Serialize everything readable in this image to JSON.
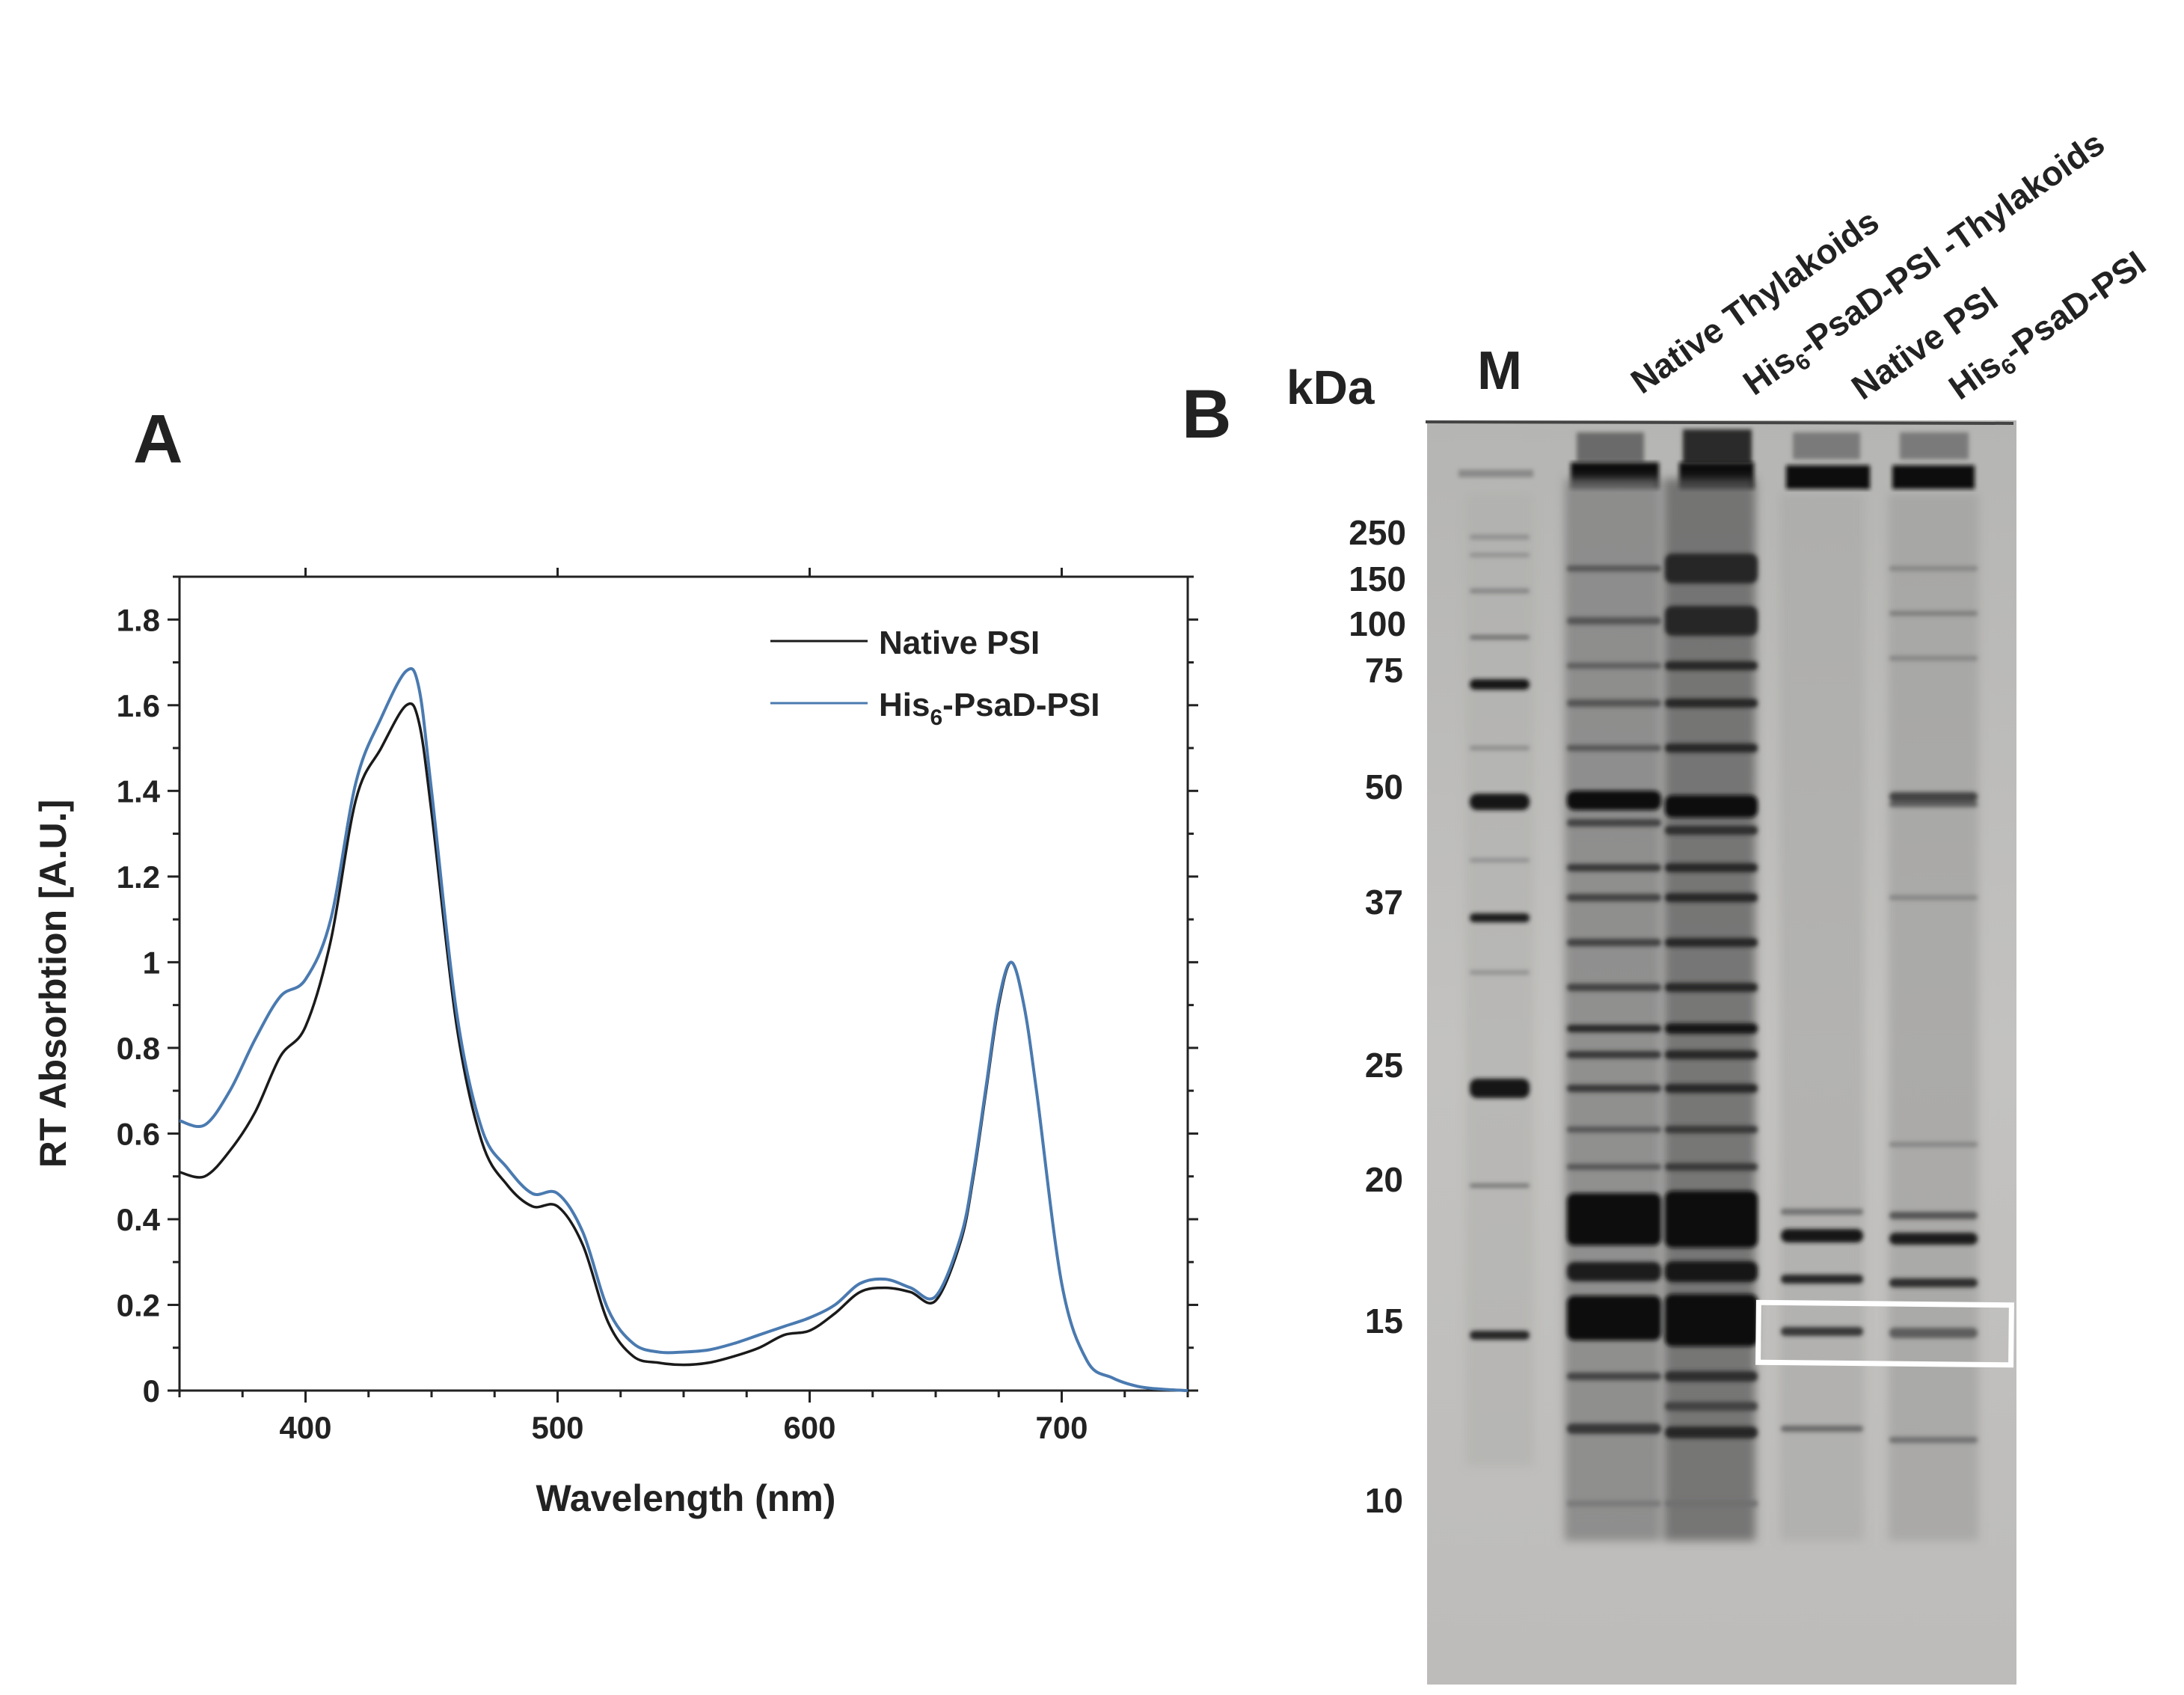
{
  "panel_a": {
    "label": "A",
    "chart_data": {
      "type": "line",
      "xlabel": "Wavelength (nm)",
      "ylabel": "RT Absorbtion [A.U.]",
      "xlim": [
        350,
        750
      ],
      "ylim": [
        0,
        1.9
      ],
      "xticks": [
        "400",
        "500",
        "600",
        "700"
      ],
      "yticks": [
        "0",
        "0.2",
        "0.4",
        "0.6",
        "0.8",
        "1",
        "1.2",
        "1.4",
        "1.6",
        "1.8"
      ],
      "legend_position": "top-right",
      "series": [
        {
          "name": "Native PSI",
          "color": "#1a1a1a",
          "x": [
            350,
            360,
            370,
            380,
            390,
            400,
            410,
            420,
            430,
            440,
            445,
            450,
            460,
            470,
            480,
            490,
            500,
            510,
            520,
            530,
            540,
            550,
            560,
            570,
            580,
            590,
            600,
            610,
            620,
            630,
            640,
            650,
            660,
            665,
            670,
            675,
            680,
            685,
            690,
            700,
            710,
            720,
            730,
            740,
            750
          ],
          "y": [
            0.51,
            0.5,
            0.56,
            0.65,
            0.78,
            0.85,
            1.05,
            1.38,
            1.5,
            1.6,
            1.56,
            1.35,
            0.85,
            0.58,
            0.48,
            0.43,
            0.43,
            0.34,
            0.16,
            0.08,
            0.065,
            0.06,
            0.065,
            0.08,
            0.1,
            0.13,
            0.14,
            0.18,
            0.23,
            0.24,
            0.23,
            0.21,
            0.35,
            0.5,
            0.7,
            0.9,
            1.0,
            0.9,
            0.7,
            0.25,
            0.07,
            0.03,
            0.01,
            0.003,
            0.0
          ]
        },
        {
          "name": "His6-PsaD-PSI",
          "color": "#4a7ab0",
          "x": [
            350,
            360,
            370,
            380,
            390,
            400,
            410,
            420,
            430,
            440,
            445,
            450,
            460,
            470,
            480,
            490,
            500,
            510,
            520,
            530,
            540,
            550,
            560,
            570,
            580,
            590,
            600,
            610,
            620,
            630,
            640,
            650,
            660,
            665,
            670,
            675,
            680,
            685,
            690,
            700,
            710,
            720,
            730,
            740,
            750
          ],
          "y": [
            0.63,
            0.62,
            0.7,
            0.82,
            0.92,
            0.96,
            1.1,
            1.42,
            1.57,
            1.68,
            1.64,
            1.4,
            0.88,
            0.61,
            0.52,
            0.46,
            0.46,
            0.37,
            0.19,
            0.11,
            0.09,
            0.09,
            0.095,
            0.11,
            0.13,
            0.15,
            0.17,
            0.2,
            0.25,
            0.26,
            0.24,
            0.22,
            0.36,
            0.51,
            0.71,
            0.91,
            1.0,
            0.9,
            0.7,
            0.25,
            0.07,
            0.03,
            0.01,
            0.003,
            0.0
          ]
        }
      ]
    },
    "legend": [
      {
        "name": "Native PSI",
        "color": "#1a1a1a"
      },
      {
        "name_main": "His",
        "name_sub": "6",
        "name_rest": "-PsaD-PSI",
        "color": "#4a7ab0"
      }
    ]
  },
  "panel_b": {
    "label": "B",
    "unit_label": "kDa",
    "lanes": [
      {
        "id": "M",
        "label": "M"
      },
      {
        "id": "native-thylakoids",
        "label": "Native Thylakoids"
      },
      {
        "id": "his-thylakoids",
        "label_main": "His",
        "label_sub": "6",
        "label_rest": "-PsaD-PSI -Thylakoids"
      },
      {
        "id": "native-psi",
        "label": "Native PSI"
      },
      {
        "id": "his-psi",
        "label_main": "His",
        "label_sub": "6",
        "label_rest": "-PsaD-PSI"
      }
    ],
    "markers": [
      "250",
      "150",
      "100",
      "75",
      "50",
      "37",
      "25",
      "20",
      "15",
      "10"
    ],
    "highlight_box_band": "15 kDa (PsaD)"
  }
}
